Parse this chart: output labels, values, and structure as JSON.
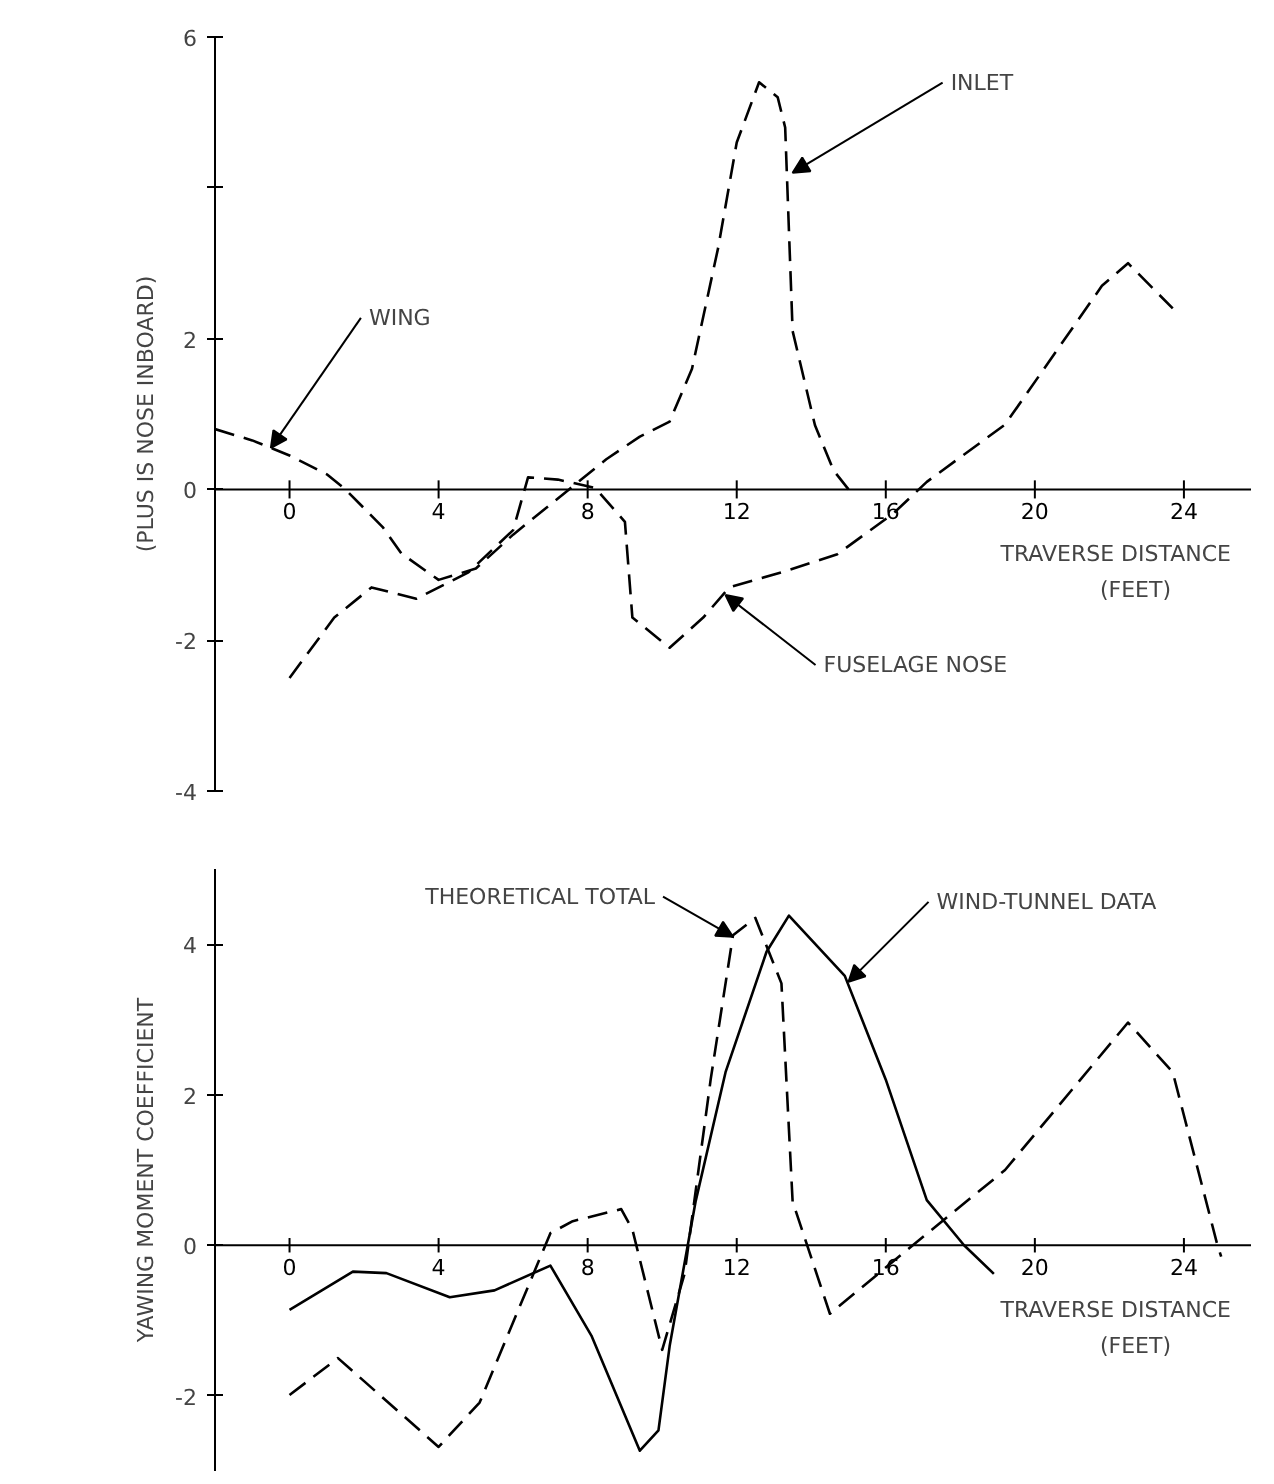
{
  "chart_data": [
    {
      "type": "line",
      "ylabel": "(PLUS IS NOSE INBOARD)",
      "xlabel": "TRAVERSE DISTANCE (FEET)",
      "line_style": "dashed",
      "xlim": [
        -2,
        25.8
      ],
      "ylim": [
        -4,
        6
      ],
      "xticks": [
        0,
        4,
        8,
        12,
        16,
        20,
        24
      ],
      "yticks": [
        -4,
        -2,
        0,
        2,
        {
          "value": 4,
          "label": null
        },
        6
      ],
      "series": [
        {
          "color": "#000000",
          "x": [
            -2,
            -1,
            0,
            1,
            1.5,
            2.5,
            3,
            4,
            5,
            6,
            7,
            7.5,
            8.5,
            9.4,
            10.2,
            10.8,
            11.5,
            12,
            12.6,
            13.1,
            13.3,
            13.5,
            14.1,
            14.6,
            15.0
          ],
          "values": [
            0.8,
            0.65,
            0.45,
            0.2,
            0,
            -0.5,
            -0.85,
            -1.2,
            -1.05,
            -0.6,
            -0.2,
            0,
            0.4,
            0.7,
            0.9,
            1.6,
            3.2,
            4.6,
            5.4,
            5.2,
            4.8,
            2.1,
            0.85,
            0.25,
            0
          ]
        },
        {
          "color": "#000000",
          "x": [
            0,
            1.2,
            2.2,
            3.4,
            4.8,
            6.0,
            6.4,
            7.2,
            8.2,
            9.0,
            9.2,
            10.2,
            11.1,
            11.8,
            13.2,
            14.7,
            16.2,
            17.1,
            19.2,
            21.8,
            22.5,
            23.7
          ],
          "values": [
            -2.5,
            -1.7,
            -1.3,
            -1.45,
            -1.1,
            -0.54,
            0.16,
            0.13,
            0.02,
            -0.43,
            -1.7,
            -2.1,
            -1.7,
            -1.3,
            -1.1,
            -0.86,
            -0.32,
            0.1,
            0.86,
            2.7,
            3.0,
            2.4
          ]
        }
      ],
      "annotations": [
        {
          "text": "WING",
          "x": -0.5,
          "y": 0.55
        },
        {
          "text": "INLET",
          "x": 13.5,
          "y": 4.2
        },
        {
          "text": "FUSELAGE NOSE",
          "x": 11.7,
          "y": -1.4
        }
      ]
    },
    {
      "type": "line",
      "ylabel": "YAWING MOMENT COEFFICIENT",
      "xlabel": "TRAVERSE DISTANCE (FEET)",
      "xlim": [
        -2,
        25.8
      ],
      "ylim": [
        -3,
        5
      ],
      "xticks": [
        0,
        4,
        8,
        12,
        16,
        20,
        24
      ],
      "yticks": [
        -2,
        0,
        2,
        4
      ],
      "series": [
        {
          "color": "#000000",
          "line_style": "dashed",
          "x": [
            0,
            1.3,
            4.0,
            5.1,
            7.0,
            7.6,
            8.9,
            9.2,
            10.0,
            10.6,
            11.3,
            11.9,
            12.5,
            13.2,
            13.5,
            14.5,
            16.6,
            19.2,
            22.5,
            23.7,
            24.9,
            25.0
          ],
          "values": [
            -1.99,
            -1.5,
            -2.68,
            -2.09,
            0.16,
            0.32,
            0.48,
            0.21,
            -1.39,
            -0.38,
            2.2,
            4.12,
            4.35,
            3.48,
            0.58,
            -0.91,
            -0.05,
            1.0,
            2.96,
            2.3,
            0.0,
            -0.15
          ]
        },
        {
          "color": "#000000",
          "line_style": "solid",
          "x": [
            0,
            1.7,
            2.6,
            4.3,
            5.5,
            7.0,
            8.1,
            9.4,
            9.9,
            10.2,
            10.9,
            11.7,
            12.8,
            13.4,
            14.9,
            16.0,
            17.1,
            18.1,
            18.9
          ],
          "values": [
            -0.86,
            -0.35,
            -0.37,
            -0.69,
            -0.6,
            -0.27,
            -1.2,
            -2.73,
            -2.46,
            -1.34,
            0.59,
            2.3,
            3.9,
            4.38,
            3.58,
            2.2,
            0.6,
            0.0,
            -0.38
          ]
        }
      ],
      "annotations": [
        {
          "text": "THEORETICAL TOTAL",
          "x": 11.9,
          "y": 4.1
        },
        {
          "text": "WIND-TUNNEL DATA",
          "x": 15.0,
          "y": 3.5
        }
      ]
    }
  ]
}
